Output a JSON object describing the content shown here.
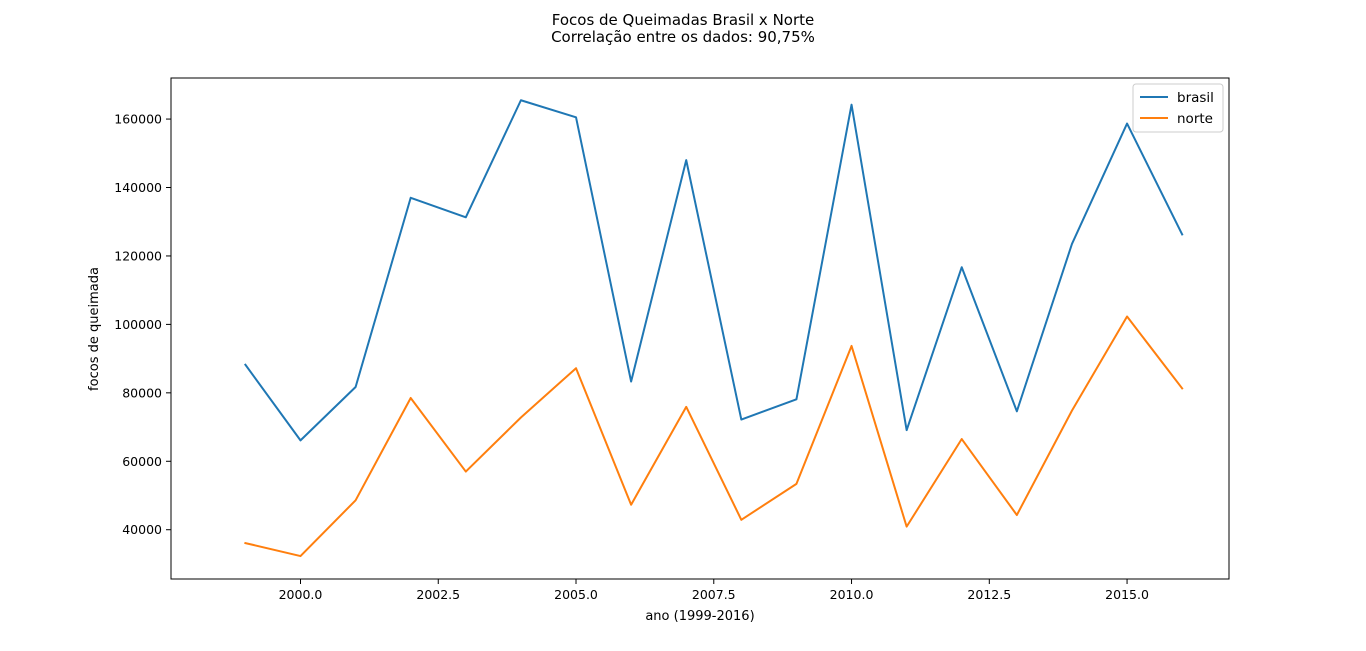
{
  "chart_data": {
    "type": "line",
    "title": "Focos de Queimadas Brasil x Norte",
    "subtitle": "Correlação entre os dados: 90,75%",
    "xlabel": "ano (1999-2016)",
    "ylabel": "focos de queimada",
    "x": [
      1999,
      2000,
      2001,
      2002,
      2003,
      2004,
      2005,
      2006,
      2007,
      2008,
      2009,
      2010,
      2011,
      2012,
      2013,
      2014,
      2015,
      2016
    ],
    "xlim": [
      1997.65,
      2016.85
    ],
    "ylim": [
      25600,
      172000
    ],
    "xticks": [
      2000.0,
      2002.5,
      2005.0,
      2007.5,
      2010.0,
      2012.5,
      2015.0
    ],
    "xtick_labels": [
      "2000.0",
      "2002.5",
      "2005.0",
      "2007.5",
      "2010.0",
      "2012.5",
      "2015.0"
    ],
    "yticks": [
      40000,
      60000,
      80000,
      100000,
      120000,
      140000,
      160000
    ],
    "ytick_labels": [
      "40000",
      "60000",
      "80000",
      "100000",
      "120000",
      "140000",
      "160000"
    ],
    "grid": false,
    "legend_position": "top-right",
    "series": [
      {
        "name": "brasil",
        "color": "#1f77b4",
        "values": [
          88200,
          66100,
          81700,
          137000,
          131300,
          165500,
          160500,
          83300,
          148000,
          72200,
          78100,
          164200,
          69100,
          116700,
          74600,
          123500,
          158700,
          126300
        ]
      },
      {
        "name": "norte",
        "color": "#ff7f0e",
        "values": [
          36100,
          32300,
          48600,
          78500,
          57000,
          72800,
          87200,
          47300,
          75900,
          42900,
          53400,
          93700,
          40900,
          66500,
          44300,
          74800,
          102300,
          81300
        ]
      }
    ]
  }
}
